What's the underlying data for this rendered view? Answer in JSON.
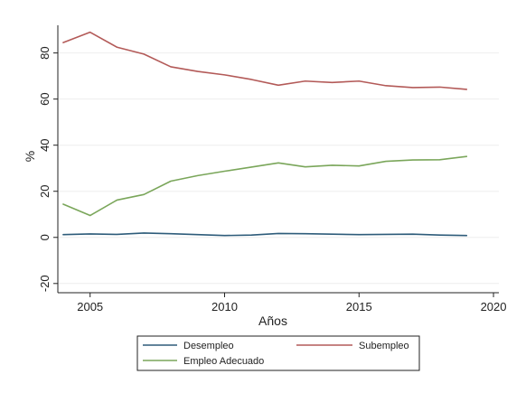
{
  "chart_data": {
    "type": "line",
    "title": "",
    "xlabel": "Años",
    "ylabel": "%",
    "xlim": [
      2003.8,
      2020.2
    ],
    "ylim": [
      -24,
      92
    ],
    "xticks": [
      2005,
      2010,
      2015,
      2020
    ],
    "yticks": [
      -20,
      0,
      20,
      40,
      60,
      80
    ],
    "grid": true,
    "legend_position": "bottom",
    "x": [
      2004,
      2005,
      2006,
      2007,
      2008,
      2009,
      2010,
      2011,
      2012,
      2013,
      2014,
      2015,
      2016,
      2017,
      2018,
      2019
    ],
    "series": [
      {
        "name": "Desempleo",
        "color": "#2e5c7a",
        "values": [
          1.2,
          1.5,
          1.3,
          1.9,
          1.6,
          1.2,
          0.8,
          1.0,
          1.7,
          1.6,
          1.4,
          1.2,
          1.3,
          1.4,
          1.0,
          0.8
        ]
      },
      {
        "name": "Subempleo",
        "color": "#b35a58",
        "values": [
          84.5,
          89.0,
          82.5,
          79.5,
          74.0,
          72.0,
          70.5,
          68.5,
          66.0,
          67.8,
          67.2,
          67.8,
          65.8,
          65.0,
          65.2,
          64.2
        ]
      },
      {
        "name": "Empleo Adecuado",
        "color": "#7aa65a",
        "values": [
          14.4,
          9.5,
          16.2,
          18.6,
          24.4,
          26.8,
          28.7,
          30.5,
          32.3,
          30.6,
          31.3,
          31.0,
          33.0,
          33.6,
          33.7,
          35.1
        ]
      }
    ]
  }
}
